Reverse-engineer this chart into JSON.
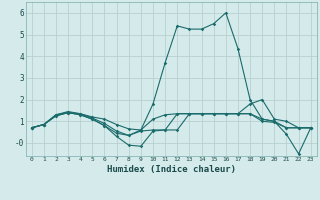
{
  "title": "",
  "xlabel": "Humidex (Indice chaleur)",
  "xlim": [
    -0.5,
    23.5
  ],
  "ylim": [
    -0.6,
    6.5
  ],
  "yticks": [
    0,
    1,
    2,
    3,
    4,
    5,
    6
  ],
  "ytick_labels": [
    "-0",
    "1",
    "2",
    "3",
    "4",
    "5",
    "6"
  ],
  "xticks": [
    0,
    1,
    2,
    3,
    4,
    5,
    6,
    7,
    8,
    9,
    10,
    11,
    12,
    13,
    14,
    15,
    16,
    17,
    18,
    19,
    20,
    21,
    22,
    23
  ],
  "background_color": "#d5eaea",
  "grid_color": "#b8d0d0",
  "line_color": "#1a6b6b",
  "lines": [
    [
      0.7,
      0.85,
      1.3,
      1.4,
      1.35,
      1.2,
      1.1,
      0.85,
      0.65,
      0.6,
      1.1,
      1.3,
      1.35,
      1.35,
      1.35,
      1.35,
      1.35,
      1.35,
      1.8,
      2.0,
      1.1,
      1.0,
      0.7,
      0.7
    ],
    [
      0.7,
      0.85,
      1.3,
      1.45,
      1.35,
      1.15,
      0.9,
      0.55,
      0.35,
      0.6,
      1.8,
      3.7,
      5.4,
      5.25,
      5.25,
      5.5,
      6.0,
      4.35,
      2.0,
      1.1,
      1.0,
      0.4,
      -0.5,
      0.7
    ],
    [
      0.7,
      0.85,
      1.25,
      1.4,
      1.3,
      1.1,
      0.8,
      0.45,
      0.35,
      0.55,
      0.6,
      0.6,
      1.35,
      1.35,
      1.35,
      1.35,
      1.35,
      1.35,
      1.35,
      1.1,
      1.0,
      0.7,
      0.7,
      0.7
    ],
    [
      0.7,
      0.85,
      1.25,
      1.4,
      1.3,
      1.1,
      0.8,
      0.3,
      -0.1,
      -0.15,
      0.55,
      0.6,
      0.6,
      1.35,
      1.35,
      1.35,
      1.35,
      1.35,
      1.35,
      1.0,
      0.95,
      0.7,
      0.7,
      0.7
    ]
  ]
}
